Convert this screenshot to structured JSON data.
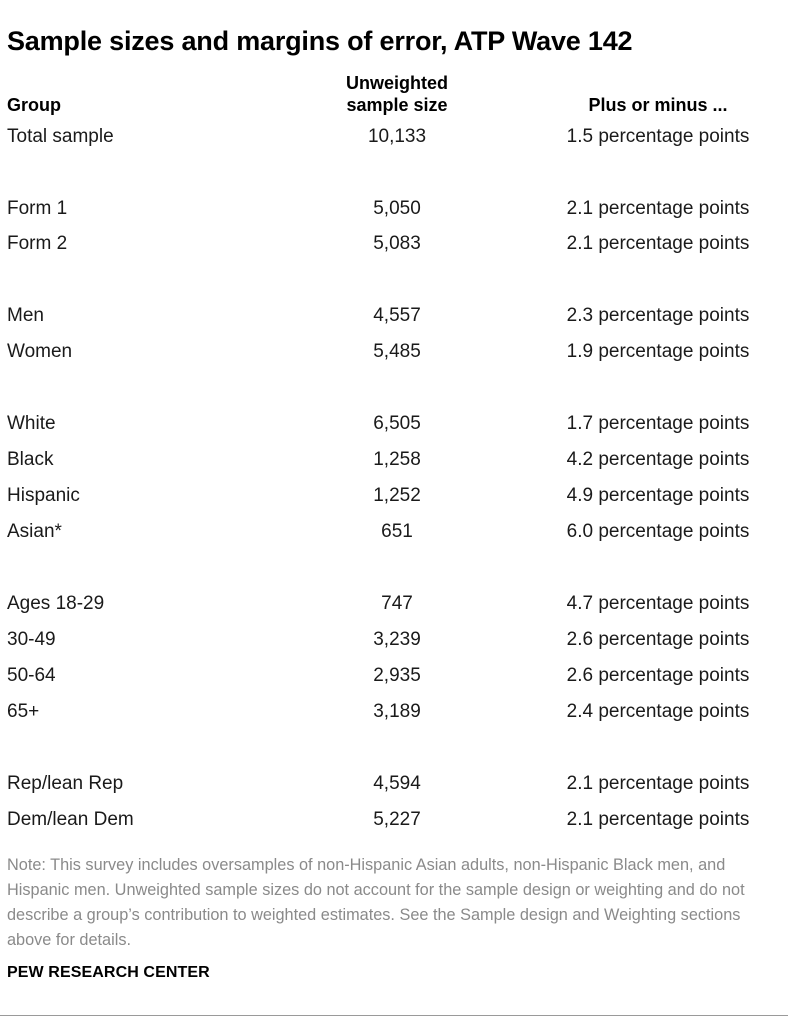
{
  "title": "Sample sizes and margins of error, ATP Wave 142",
  "headers": {
    "group": "Group",
    "sample_size_line1": "Unweighted",
    "sample_size_line2": "sample size",
    "moe": "Plus or minus ..."
  },
  "rows": [
    {
      "group": "Total sample",
      "size": "10,133",
      "moe": "1.5 percentage points"
    },
    {
      "group": "Form 1",
      "size": "5,050",
      "moe": "2.1 percentage points"
    },
    {
      "group": "Form 2",
      "size": "5,083",
      "moe": "2.1 percentage points"
    },
    {
      "group": "Men",
      "size": "4,557",
      "moe": "2.3 percentage points"
    },
    {
      "group": "Women",
      "size": "5,485",
      "moe": "1.9 percentage points"
    },
    {
      "group": "White",
      "size": "6,505",
      "moe": "1.7 percentage points"
    },
    {
      "group": "Black",
      "size": "1,258",
      "moe": "4.2 percentage points"
    },
    {
      "group": "Hispanic",
      "size": "1,252",
      "moe": "4.9 percentage points"
    },
    {
      "group": "Asian*",
      "size": "651",
      "moe": "6.0 percentage points"
    },
    {
      "group": "Ages 18-29",
      "size": "747",
      "moe": "4.7 percentage points"
    },
    {
      "group": "30-49",
      "size": "3,239",
      "moe": "2.6 percentage points"
    },
    {
      "group": "50-64",
      "size": "2,935",
      "moe": "2.6 percentage points"
    },
    {
      "group": "65+",
      "size": "3,189",
      "moe": "2.4 percentage points"
    },
    {
      "group": "Rep/lean Rep",
      "size": "4,594",
      "moe": "2.1 percentage points"
    },
    {
      "group": "Dem/lean Dem",
      "size": "5,227",
      "moe": "2.1 percentage points"
    }
  ],
  "note": "Note: This survey includes oversamples of non-Hispanic Asian adults, non-Hispanic Black men, and Hispanic men. Unweighted sample sizes do not account for the sample design or weighting and do not describe a group’s contribution to weighted estimates. See the Sample design and Weighting sections above for details.",
  "source": "PEW RESEARCH CENTER"
}
